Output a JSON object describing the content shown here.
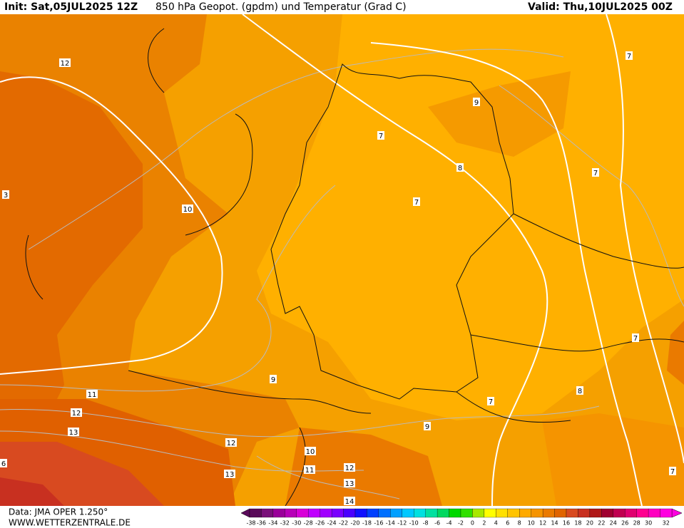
{
  "header": {
    "init": "Init: Sat,05JUL2025 12Z",
    "title": "850 hPa Geopot. (gpdm) und Temperatur (Grad C)",
    "valid": "Valid: Thu,10JUL2025 00Z"
  },
  "footer": {
    "data": "Data: JMA OPER 1.250°",
    "site": "WWW.WETTERZENTRALE.DE"
  },
  "contour_labels": [
    "12",
    "3",
    "10",
    "7",
    "9",
    "8",
    "7",
    "7",
    "7",
    "9",
    "11",
    "12",
    "13",
    "12",
    "13",
    "10",
    "11",
    "12",
    "13",
    "14",
    "9",
    "7",
    "8",
    "7",
    "7",
    "6"
  ],
  "colorbar": {
    "ticks": [
      -38,
      -36,
      -34,
      -32,
      -30,
      -28,
      -26,
      -24,
      -22,
      -20,
      -18,
      -16,
      -14,
      -12,
      -10,
      -8,
      -6,
      -4,
      -2,
      0,
      2,
      4,
      6,
      8,
      10,
      12,
      14,
      16,
      18,
      20,
      22,
      24,
      26,
      28,
      30,
      32
    ],
    "colors": [
      "#5a0a5a",
      "#7a107a",
      "#9a009a",
      "#b800b8",
      "#d800d8",
      "#c000ff",
      "#a000ff",
      "#7a00ff",
      "#4a00ff",
      "#1010ff",
      "#0040ff",
      "#0070ff",
      "#00a0ff",
      "#00c8ff",
      "#00e0e0",
      "#00e0a0",
      "#00d860",
      "#00d800",
      "#30e000",
      "#a8e800",
      "#ffff00",
      "#ffe000",
      "#ffc400",
      "#ffaa00",
      "#f59400",
      "#ea7a00",
      "#e06400",
      "#d84a20",
      "#c83020",
      "#b01818",
      "#a00030",
      "#c00050",
      "#e00070",
      "#ff0090",
      "#ff00c0",
      "#ff00e0"
    ]
  }
}
